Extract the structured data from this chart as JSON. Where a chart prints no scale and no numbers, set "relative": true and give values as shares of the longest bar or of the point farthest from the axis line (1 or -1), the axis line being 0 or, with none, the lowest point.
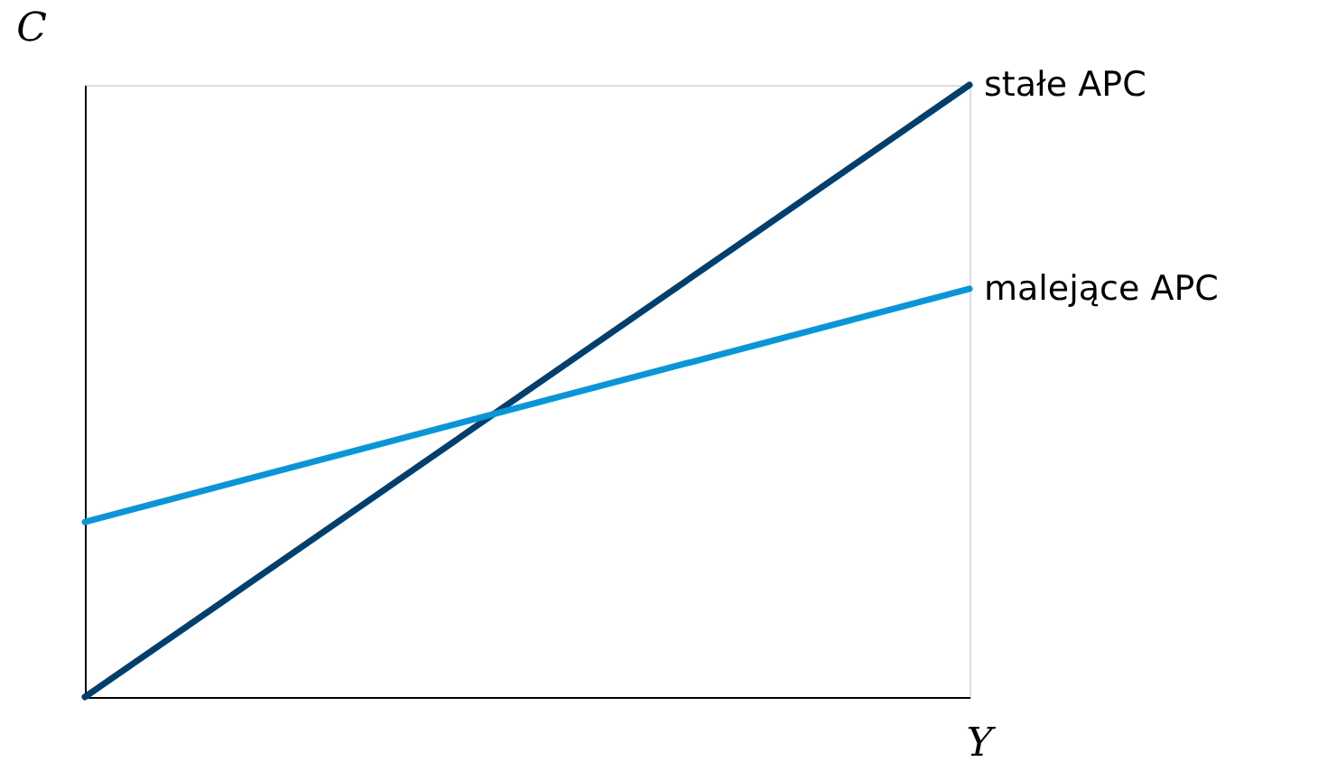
{
  "chart_data": {
    "type": "line",
    "relative": true,
    "xlabel": "Y",
    "ylabel": "C",
    "categories": [
      null,
      null
    ],
    "legend": false,
    "grid": false,
    "series": [
      {
        "name": "stałe APC",
        "color": "#003f6e",
        "values": [
          0,
          1
        ]
      },
      {
        "name": "malejące APC",
        "color": "#0a96d6",
        "values": [
          0.286,
          0.667
        ]
      }
    ]
  }
}
